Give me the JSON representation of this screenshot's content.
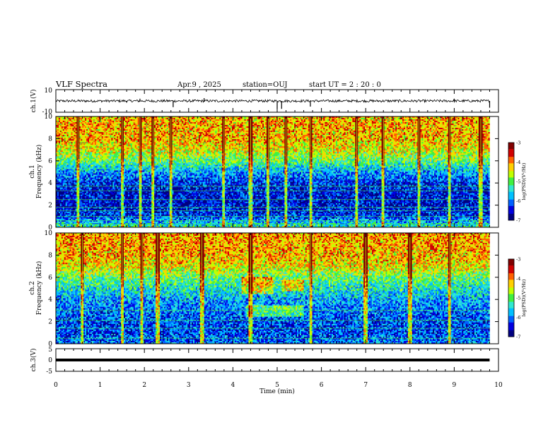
{
  "header": {
    "title": "VLF Spectra",
    "date": "Apr.9  , 2025",
    "station": "station=OUJ",
    "start_ut": "start UT =  2 : 20 : 0"
  },
  "chart_data": [
    {
      "type": "line",
      "panel": "ch1-waveform",
      "ylabel": "ch.1(V)",
      "ylim": [
        -10,
        10
      ],
      "yticks": [
        "10",
        "-10"
      ],
      "xlim": [
        0,
        10
      ],
      "x": [
        0,
        1.6,
        1.9,
        2.65,
        3.35,
        5.0,
        5.1,
        5.75,
        9.0,
        9.8
      ],
      "y": [
        0,
        -1.5,
        2.0,
        -5.5,
        2.5,
        -7.0,
        -7.0,
        -5.0,
        2.0,
        -6.0
      ],
      "baseline": 0,
      "color": "#000000"
    },
    {
      "type": "heatmap",
      "panel": "ch1-spectrogram",
      "ylabel": "ch.1\nFrequency (kHz)",
      "ylim": [
        0,
        10
      ],
      "yticks": [
        "0",
        "2",
        "4",
        "6",
        "8",
        "10"
      ],
      "xlim": [
        0,
        10
      ],
      "data_end_min": 9.8,
      "colorbar": {
        "label": "log(PSD)(V²/Hz)",
        "range": [
          -7,
          -3
        ],
        "ticks": [
          "-3",
          "-4",
          "-5",
          "-6",
          "-7"
        ]
      },
      "level_profile_khz": [
        0,
        1,
        2,
        3,
        4,
        5,
        6,
        7,
        8,
        10
      ],
      "level_profile_logpsd": [
        -5.2,
        -6.3,
        -6.5,
        -6.5,
        -6.3,
        -5.8,
        -5.0,
        -4.5,
        -4.2,
        -4.2
      ],
      "horizontal_lines_khz": [
        0.3,
        0.6,
        1.0,
        1.5,
        1.8,
        2.5,
        3.3,
        3.7
      ],
      "vertical_spikes_min": [
        0.5,
        1.5,
        1.9,
        2.2,
        2.6,
        3.8,
        4.4,
        4.8,
        5.2,
        5.75,
        6.8,
        7.4,
        8.2,
        8.9,
        9.6
      ]
    },
    {
      "type": "heatmap",
      "panel": "ch2-spectrogram",
      "ylabel": "ch.2\nFrequency (kHz)",
      "ylim": [
        0,
        10
      ],
      "yticks": [
        "0",
        "2",
        "4",
        "6",
        "8",
        "10"
      ],
      "xlim": [
        0,
        10
      ],
      "data_end_min": 9.8,
      "colorbar": {
        "label": "log(PSD)(V²/Hz)",
        "range": [
          -7,
          -3
        ],
        "ticks": [
          "-3",
          "-4",
          "-5",
          "-6",
          "-7"
        ]
      },
      "level_profile_khz": [
        0,
        1,
        2,
        3,
        4,
        5,
        6,
        7,
        8,
        10
      ],
      "level_profile_logpsd": [
        -6.0,
        -6.2,
        -6.2,
        -6.0,
        -5.8,
        -5.4,
        -5.0,
        -4.4,
        -4.2,
        -4.1
      ],
      "horizontal_lines_khz": [
        0.5,
        1.4,
        2.1,
        3.0
      ],
      "vertical_spikes_min": [
        0.6,
        1.5,
        1.95,
        2.3,
        3.3,
        4.4,
        5.75,
        7.0,
        8.0,
        8.9
      ],
      "blob_regions": [
        {
          "x": [
            4.2,
            4.9
          ],
          "y": [
            4.5,
            6.0
          ]
        },
        {
          "x": [
            5.1,
            5.6
          ],
          "y": [
            4.8,
            5.8
          ]
        },
        {
          "x": [
            4.3,
            5.6
          ],
          "y": [
            2.5,
            3.5
          ]
        }
      ]
    },
    {
      "type": "line",
      "panel": "ch3-waveform",
      "ylabel": "ch.3(V)",
      "ylim": [
        -5,
        5
      ],
      "yticks": [
        "5",
        "0",
        "-5"
      ],
      "xlim": [
        0,
        10
      ],
      "x": [
        0,
        9.8
      ],
      "y": [
        0,
        0
      ],
      "color": "#000000"
    }
  ],
  "x_axis": {
    "label": "Time (min)",
    "ticks": [
      "0",
      "1",
      "2",
      "3",
      "4",
      "5",
      "6",
      "7",
      "8",
      "9",
      "10"
    ]
  },
  "colors": {
    "colormap": [
      "#000080",
      "#0000e0",
      "#0060ff",
      "#00c0ff",
      "#30e8d0",
      "#40f040",
      "#c0ff00",
      "#ffd000",
      "#ff6000",
      "#d00000",
      "#800000"
    ],
    "ink": "#000000",
    "background": "#ffffff"
  }
}
